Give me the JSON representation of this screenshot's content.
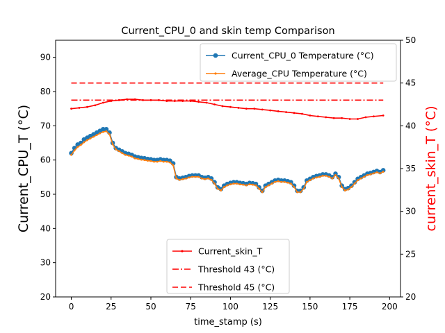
{
  "chart_data": {
    "type": "line",
    "title": "Current_CPU_0 and skin temp Comparison",
    "xlabel": "time_stamp (s)",
    "ylabel_left": "Current_CPU_T (°C)",
    "ylabel_right": "current_skin_T (°C)",
    "xlim": [
      -9.85,
      206.85
    ],
    "ylim_left": [
      20,
      95
    ],
    "ylim_right": [
      20,
      50
    ],
    "x_ticks": [
      0,
      25,
      50,
      75,
      100,
      125,
      150,
      175,
      200
    ],
    "y_ticks_left": [
      20,
      30,
      40,
      50,
      60,
      70,
      80,
      90
    ],
    "y_ticks_right": [
      20,
      25,
      30,
      35,
      40,
      45,
      50
    ],
    "grid": false,
    "legend_top": {
      "placement": "upper-right",
      "entries": [
        {
          "label": "Current_CPU_0 Temperature (°C)",
          "color": "#1f77b4"
        },
        {
          "label": "Average_CPU Temperature (°C)",
          "color": "#ff7f0e"
        }
      ]
    },
    "legend_bottom": {
      "placement": "lower-center",
      "entries": [
        {
          "label": "Current_skin_T",
          "color": "#ff0000"
        },
        {
          "label": "Threshold 43 (°C)",
          "color": "#ff0000"
        },
        {
          "label": "Threshold 45 (°C)",
          "color": "#ff0000"
        }
      ]
    },
    "series": [
      {
        "name": "Current_CPU_0 Temperature (°C)",
        "axis": "left",
        "color": "#1f77b4",
        "marker": "circle",
        "x": [
          0,
          2,
          4,
          6,
          8,
          10,
          12,
          14,
          16,
          18,
          20,
          22,
          24,
          26,
          28,
          30,
          32,
          34,
          36,
          38,
          40,
          42,
          44,
          46,
          48,
          50,
          52,
          54,
          56,
          58,
          60,
          62,
          64,
          66,
          68,
          70,
          72,
          74,
          76,
          78,
          80,
          82,
          84,
          86,
          88,
          90,
          92,
          94,
          96,
          98,
          100,
          102,
          104,
          106,
          108,
          110,
          112,
          114,
          116,
          118,
          120,
          122,
          124,
          126,
          128,
          130,
          132,
          134,
          136,
          138,
          140,
          142,
          144,
          146,
          148,
          150,
          152,
          154,
          156,
          158,
          160,
          162,
          164,
          166,
          168,
          170,
          172,
          174,
          176,
          178,
          180,
          182,
          184,
          186,
          188,
          190,
          192,
          194,
          196
        ],
        "y": [
          62.0,
          63.5,
          64.5,
          65.0,
          66.0,
          66.5,
          67.0,
          67.5,
          68.0,
          68.5,
          69.0,
          69.0,
          68.0,
          65.0,
          63.5,
          63.0,
          62.5,
          62.0,
          61.8,
          61.5,
          61.0,
          60.8,
          60.6,
          60.5,
          60.3,
          60.2,
          60.0,
          60.0,
          60.2,
          60.0,
          60.0,
          59.8,
          59.0,
          55.0,
          54.6,
          54.8,
          55.0,
          55.3,
          55.5,
          55.5,
          55.5,
          55.0,
          54.8,
          55.0,
          54.6,
          53.5,
          52.0,
          51.5,
          52.5,
          53.0,
          53.3,
          53.5,
          53.5,
          53.3,
          53.2,
          53.0,
          53.3,
          53.2,
          53.0,
          52.0,
          51.0,
          52.5,
          53.0,
          53.5,
          54.0,
          54.2,
          54.0,
          54.0,
          53.8,
          53.5,
          52.5,
          51.0,
          51.0,
          52.0,
          54.0,
          54.5,
          55.0,
          55.3,
          55.5,
          55.8,
          55.8,
          55.5,
          55.0,
          56.0,
          55.0,
          52.5,
          51.5,
          51.8,
          52.5,
          53.5,
          54.5,
          55.0,
          55.5,
          56.0,
          56.2,
          56.5,
          56.8,
          56.5,
          57.0
        ]
      },
      {
        "name": "Average_CPU Temperature (°C)",
        "axis": "left",
        "color": "#ff7f0e",
        "marker": "dot",
        "x": [
          0,
          2,
          4,
          6,
          8,
          10,
          12,
          14,
          16,
          18,
          20,
          22,
          24,
          26,
          28,
          30,
          32,
          34,
          36,
          38,
          40,
          42,
          44,
          46,
          48,
          50,
          52,
          54,
          56,
          58,
          60,
          62,
          64,
          66,
          68,
          70,
          72,
          74,
          76,
          78,
          80,
          82,
          84,
          86,
          88,
          90,
          92,
          94,
          96,
          98,
          100,
          102,
          104,
          106,
          108,
          110,
          112,
          114,
          116,
          118,
          120,
          122,
          124,
          126,
          128,
          130,
          132,
          134,
          136,
          138,
          140,
          142,
          144,
          146,
          148,
          150,
          152,
          154,
          156,
          158,
          160,
          162,
          164,
          166,
          168,
          170,
          172,
          174,
          176,
          178,
          180,
          182,
          184,
          186,
          188,
          190,
          192,
          194,
          196
        ],
        "y": [
          61.5,
          62.8,
          63.8,
          64.4,
          65.2,
          65.8,
          66.3,
          66.8,
          67.3,
          67.8,
          68.2,
          68.4,
          67.5,
          64.6,
          63.1,
          62.6,
          62.0,
          61.5,
          61.3,
          61.0,
          60.5,
          60.3,
          60.1,
          60.0,
          59.8,
          59.7,
          59.5,
          59.5,
          59.7,
          59.5,
          59.5,
          59.3,
          58.5,
          54.6,
          54.2,
          54.4,
          54.6,
          54.9,
          55.1,
          55.1,
          55.1,
          54.6,
          54.4,
          54.6,
          54.2,
          53.1,
          51.6,
          51.1,
          52.1,
          52.6,
          52.9,
          53.1,
          53.1,
          52.9,
          52.8,
          52.6,
          52.9,
          52.8,
          52.6,
          51.6,
          50.6,
          52.1,
          52.6,
          53.1,
          53.6,
          53.8,
          53.6,
          53.6,
          53.4,
          53.1,
          52.1,
          50.6,
          50.6,
          51.6,
          53.6,
          54.1,
          54.6,
          54.9,
          55.1,
          55.4,
          55.4,
          55.1,
          54.6,
          55.6,
          54.6,
          52.1,
          51.1,
          51.4,
          52.1,
          53.1,
          54.1,
          54.6,
          55.1,
          55.6,
          55.8,
          56.1,
          56.4,
          56.1,
          56.6
        ]
      },
      {
        "name": "Current_skin_T",
        "axis": "right",
        "color": "#ff0000",
        "marker": "dot",
        "x": [
          0,
          5,
          10,
          15,
          20,
          25,
          30,
          35,
          40,
          45,
          50,
          55,
          60,
          65,
          70,
          75,
          80,
          85,
          90,
          95,
          100,
          105,
          110,
          115,
          120,
          125,
          130,
          135,
          140,
          145,
          150,
          155,
          160,
          165,
          170,
          175,
          180,
          185,
          190,
          196
        ],
        "y": [
          42.0,
          42.1,
          42.2,
          42.4,
          42.7,
          42.9,
          43.0,
          43.1,
          43.1,
          43.0,
          43.0,
          43.0,
          42.9,
          42.9,
          42.9,
          42.9,
          42.8,
          42.7,
          42.5,
          42.3,
          42.2,
          42.1,
          42.0,
          42.0,
          41.9,
          41.8,
          41.7,
          41.6,
          41.5,
          41.4,
          41.2,
          41.1,
          41.0,
          40.9,
          40.9,
          40.8,
          40.8,
          41.0,
          41.1,
          41.2
        ]
      },
      {
        "name": "Threshold 43 (°C)",
        "axis": "right",
        "color": "#ff0000",
        "dash": "dashdot",
        "x": [
          0,
          196
        ],
        "y": [
          43,
          43
        ]
      },
      {
        "name": "Threshold 45 (°C)",
        "axis": "right",
        "color": "#ff0000",
        "dash": "dashed",
        "x": [
          0,
          196
        ],
        "y": [
          45,
          45
        ]
      }
    ]
  }
}
